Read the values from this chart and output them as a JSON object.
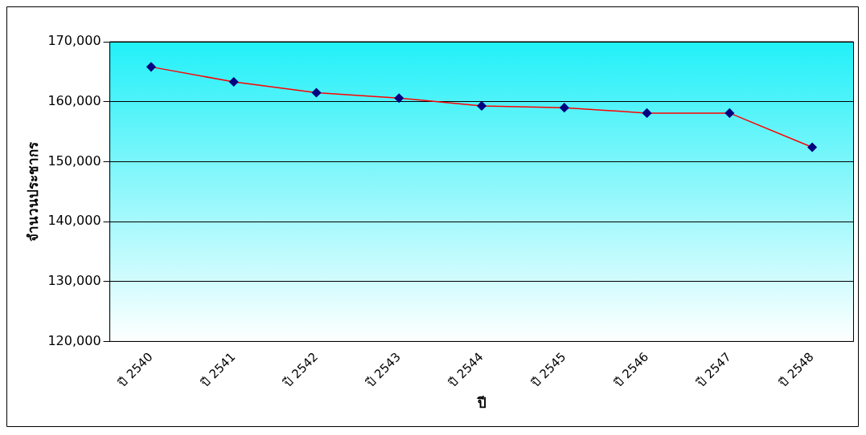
{
  "chart_data": {
    "type": "line",
    "xlabel": "ปี",
    "ylabel": "จำนวนประชากร",
    "categories": [
      "ปี 2540",
      "ปี 2541",
      "ปี 2542",
      "ปี 2543",
      "ปี 2544",
      "ปี 2545",
      "ปี 2546",
      "ปี 2547",
      "ปี 2548"
    ],
    "series": [
      {
        "color": "#ff0000",
        "values": [
          165800,
          163300,
          161500,
          160600,
          159300,
          159000,
          158100,
          158100,
          152400
        ]
      }
    ],
    "ylim": [
      120000,
      170000
    ],
    "yticks": [
      {
        "value": 120000,
        "label": "120,000"
      },
      {
        "value": 130000,
        "label": "130,000"
      },
      {
        "value": 140000,
        "label": "140,000"
      },
      {
        "value": 150000,
        "label": "150,000"
      },
      {
        "value": 160000,
        "label": "160,000"
      },
      {
        "value": 170000,
        "label": "170,000"
      }
    ],
    "grid": "y",
    "legend": false,
    "marker": "diamond",
    "line_style": "solid"
  }
}
